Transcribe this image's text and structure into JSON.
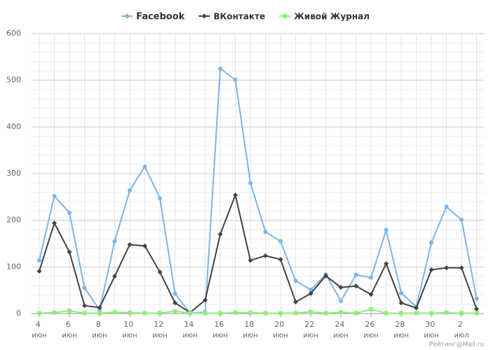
{
  "chart_data": {
    "type": "line",
    "categories": [
      "4 июн",
      null,
      "6 июн",
      null,
      "8 июн",
      null,
      "10 июн",
      null,
      "12 июн",
      null,
      "14 июн",
      null,
      "16 июн",
      null,
      "18 июн",
      null,
      "20 июн",
      null,
      "22 июн",
      null,
      "24 июн",
      null,
      "26 июн",
      null,
      "28 июн",
      null,
      "30 июн",
      null,
      "2 июл",
      null
    ],
    "series": [
      {
        "name": "Facebook",
        "color": "#7cb5ec",
        "marker": "circle",
        "values": [
          114,
          252,
          216,
          55,
          8,
          155,
          264,
          315,
          247,
          43,
          1,
          3,
          525,
          501,
          280,
          175,
          155,
          70,
          51,
          84,
          27,
          83,
          77,
          179,
          44,
          15,
          152,
          229,
          201,
          32
        ]
      },
      {
        "name": "ВКонтакте",
        "color": "#434348",
        "marker": "diamond",
        "values": [
          91,
          194,
          132,
          17,
          13,
          80,
          148,
          145,
          89,
          23,
          2,
          29,
          170,
          254,
          114,
          124,
          116,
          25,
          43,
          81,
          56,
          59,
          41,
          107,
          23,
          12,
          94,
          98,
          98,
          10
        ]
      },
      {
        "name": "Живой Журнал",
        "color": "#90ed7d",
        "marker": "square",
        "values": [
          1,
          2,
          6,
          1,
          1,
          3,
          2,
          1,
          1,
          5,
          1,
          1,
          1,
          2,
          2,
          1,
          1,
          1,
          4,
          1,
          3,
          1,
          9,
          1,
          1,
          1,
          1,
          2,
          1,
          1
        ]
      }
    ],
    "ylim": [
      0,
      600
    ],
    "yticks": [
      0,
      100,
      200,
      300,
      400,
      500,
      600
    ],
    "grid": true,
    "legend": "top",
    "credit": "Рейтинг@Mail.ru"
  }
}
